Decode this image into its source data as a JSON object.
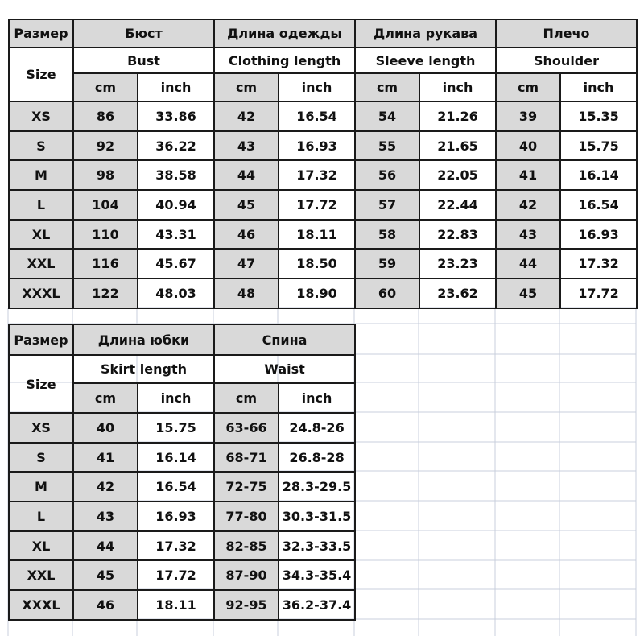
{
  "colors": {
    "header_fill": "#d9d9d9",
    "border": "#1a1a1a",
    "sheet_grid": "#c8cfdc"
  },
  "top_table": {
    "size_ru": "Размер",
    "size_en": "Size",
    "groups": [
      {
        "ru": "Бюст",
        "en": "Bust"
      },
      {
        "ru": "Длина одежды",
        "en": "Clothing length"
      },
      {
        "ru": "Длина рукава",
        "en": "Sleeve length"
      },
      {
        "ru": "Плечо",
        "en": "Shoulder"
      }
    ],
    "unit_cm": "cm",
    "unit_inch": "inch",
    "rows": [
      {
        "size": "XS",
        "values": [
          "86",
          "33.86",
          "42",
          "16.54",
          "54",
          "21.26",
          "39",
          "15.35"
        ]
      },
      {
        "size": "S",
        "values": [
          "92",
          "36.22",
          "43",
          "16.93",
          "55",
          "21.65",
          "40",
          "15.75"
        ]
      },
      {
        "size": "M",
        "values": [
          "98",
          "38.58",
          "44",
          "17.32",
          "56",
          "22.05",
          "41",
          "16.14"
        ]
      },
      {
        "size": "L",
        "values": [
          "104",
          "40.94",
          "45",
          "17.72",
          "57",
          "22.44",
          "42",
          "16.54"
        ]
      },
      {
        "size": "XL",
        "values": [
          "110",
          "43.31",
          "46",
          "18.11",
          "58",
          "22.83",
          "43",
          "16.93"
        ]
      },
      {
        "size": "XXL",
        "values": [
          "116",
          "45.67",
          "47",
          "18.50",
          "59",
          "23.23",
          "44",
          "17.32"
        ]
      },
      {
        "size": "XXXL",
        "values": [
          "122",
          "48.03",
          "48",
          "18.90",
          "60",
          "23.62",
          "45",
          "17.72"
        ]
      }
    ]
  },
  "bottom_table": {
    "size_ru": "Размер",
    "size_en": "Size",
    "groups": [
      {
        "ru": "Длина юбки",
        "en": "Skirt length"
      },
      {
        "ru": "Спина",
        "en": "Waist"
      }
    ],
    "unit_cm": "cm",
    "unit_inch": "inch",
    "rows": [
      {
        "size": "XS",
        "values": [
          "40",
          "15.75",
          "63-66",
          "24.8-26"
        ]
      },
      {
        "size": "S",
        "values": [
          "41",
          "16.14",
          "68-71",
          "26.8-28"
        ]
      },
      {
        "size": "M",
        "values": [
          "42",
          "16.54",
          "72-75",
          "28.3-29.5"
        ]
      },
      {
        "size": "L",
        "values": [
          "43",
          "16.93",
          "77-80",
          "30.3-31.5"
        ]
      },
      {
        "size": "XL",
        "values": [
          "44",
          "17.32",
          "82-85",
          "32.3-33.5"
        ]
      },
      {
        "size": "XXL",
        "values": [
          "45",
          "17.72",
          "87-90",
          "34.3-35.4"
        ]
      },
      {
        "size": "XXXL",
        "values": [
          "46",
          "18.11",
          "92-95",
          "36.2-37.4"
        ]
      }
    ]
  }
}
